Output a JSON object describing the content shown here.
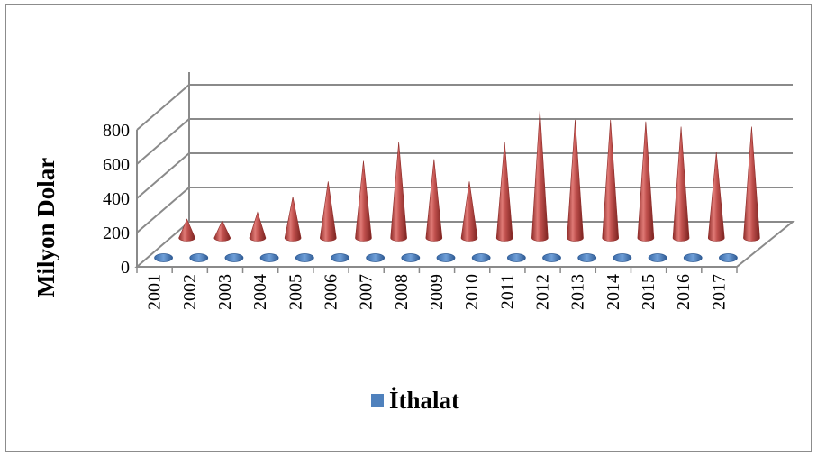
{
  "chart_data": {
    "type": "bar",
    "ylabel": "Milyon Dolar",
    "ylim": [
      0,
      800
    ],
    "yticks": [
      "0",
      "200",
      "400",
      "600",
      "800"
    ],
    "categories": [
      "2001",
      "2002",
      "2003",
      "2004",
      "2005",
      "2006",
      "2007",
      "2008",
      "2009",
      "2010",
      "2011",
      "2012",
      "2013",
      "2014",
      "2015",
      "2016",
      "2017"
    ],
    "series": [
      {
        "name": "",
        "color": "#c0504d",
        "values": [
          110,
          100,
          150,
          240,
          330,
          450,
          560,
          460,
          330,
          560,
          750,
          690,
          690,
          680,
          650,
          500,
          650
        ]
      },
      {
        "name": "İthalat",
        "color": "#4f81bd",
        "values": [
          0,
          0,
          0,
          0,
          0,
          0,
          0,
          0,
          0,
          0,
          0,
          0,
          0,
          0,
          0,
          0,
          0
        ]
      }
    ],
    "legend": "bottom",
    "grid": true
  }
}
